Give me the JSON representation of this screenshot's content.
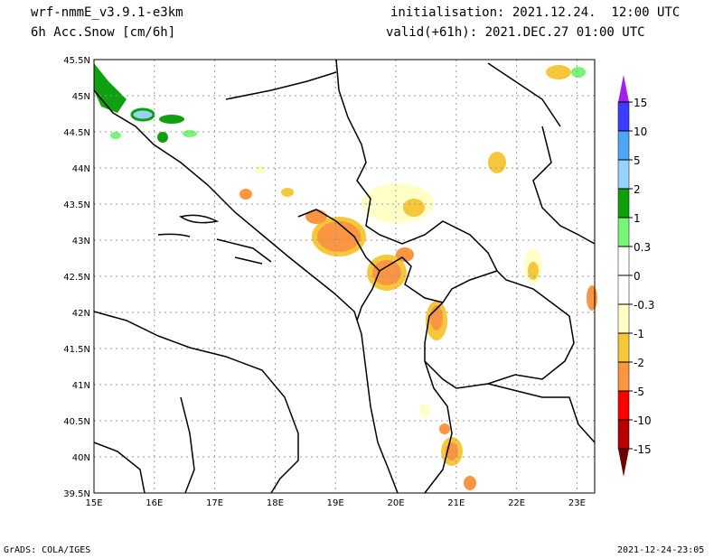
{
  "header": {
    "model": "wrf-nmmE_v3.9.1-e3km",
    "field": "6h Acc.Snow [cm/6h]",
    "init": "initialisation: 2021.12.24.  12:00 UTC",
    "valid": "valid(+61h): 2021.DEC.27 01:00 UTC"
  },
  "footer": {
    "left": "GrADS: COLA/IGES",
    "right": "2021-12-24-23:05"
  },
  "lon_ticks": [
    "15E",
    "16E",
    "17E",
    "18E",
    "19E",
    "20E",
    "21E",
    "22E",
    "23E"
  ],
  "lat_ticks": [
    "45.5N",
    "45N",
    "44.5N",
    "44N",
    "43.5N",
    "43N",
    "42.5N",
    "42N",
    "41.5N",
    "41N",
    "40.5N",
    "40N",
    "39.5N"
  ],
  "colorbar": {
    "levels": [
      "15",
      "10",
      "5",
      "2",
      "1",
      "0.3",
      "0",
      "-0.3",
      "-1",
      "-2",
      "-5",
      "-10",
      "-15"
    ],
    "colors": [
      "#3c3cff",
      "#50a5f5",
      "#96d2fa",
      "#0fa00f",
      "#78f578",
      "#ffffff",
      "#ffffff",
      "#ffffc8",
      "#f5c83c",
      "#fa9641",
      "#ff0000",
      "#b40000"
    ],
    "top_arrow": "#a020f0",
    "bottom_arrow": "#6e0000"
  }
}
